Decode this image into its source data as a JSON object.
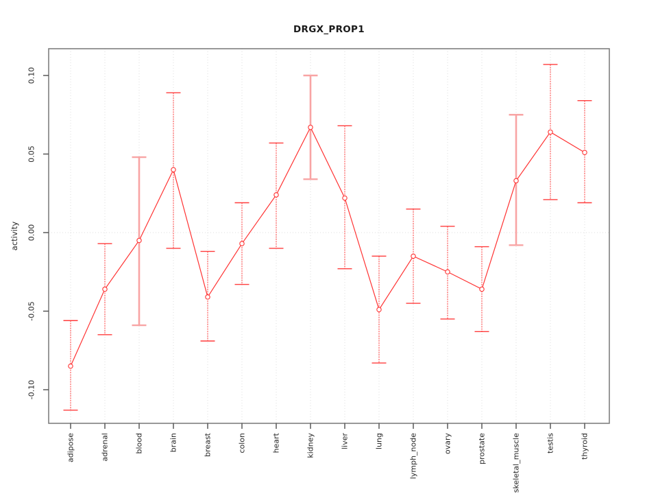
{
  "chart_data": {
    "type": "line",
    "subtype": "point-estimates-with-error-bars",
    "title": "DRGX_PROP1",
    "xlabel": "",
    "ylabel": "activity",
    "ylim": [
      -0.121,
      0.117
    ],
    "grid": {
      "vertical": "dotted-per-category",
      "horizontal": "dotted-at-zero-only"
    },
    "reference_line": 0.0,
    "legend": "none",
    "yticks": [
      {
        "value": 0.1,
        "label": "0.10"
      },
      {
        "value": 0.05,
        "label": "0.05"
      },
      {
        "value": 0.0,
        "label": "0.00"
      },
      {
        "value": -0.05,
        "label": "-0.05"
      },
      {
        "value": -0.1,
        "label": "-0.10"
      }
    ],
    "categories": [
      "adipose",
      "adrenal",
      "blood",
      "brain",
      "breast",
      "colon",
      "heart",
      "kidney",
      "liver",
      "lung",
      "lymph_node",
      "ovary",
      "prostate",
      "skeletal_muscle",
      "testis",
      "thyroid"
    ],
    "series": [
      {
        "name": "activity",
        "points": [
          {
            "label": "adipose",
            "value": -0.085,
            "lower": -0.113,
            "upper": -0.056,
            "bar": "thin"
          },
          {
            "label": "adrenal",
            "value": -0.036,
            "lower": -0.065,
            "upper": -0.007,
            "bar": "thin"
          },
          {
            "label": "blood",
            "value": -0.005,
            "lower": -0.059,
            "upper": 0.048,
            "bar": "thick"
          },
          {
            "label": "brain",
            "value": 0.04,
            "lower": -0.01,
            "upper": 0.089,
            "bar": "thin"
          },
          {
            "label": "breast",
            "value": -0.041,
            "lower": -0.069,
            "upper": -0.012,
            "bar": "thin"
          },
          {
            "label": "colon",
            "value": -0.007,
            "lower": -0.033,
            "upper": 0.019,
            "bar": "thin"
          },
          {
            "label": "heart",
            "value": 0.024,
            "lower": -0.01,
            "upper": 0.057,
            "bar": "thin"
          },
          {
            "label": "kidney",
            "value": 0.067,
            "lower": 0.034,
            "upper": 0.1,
            "bar": "thick"
          },
          {
            "label": "liver",
            "value": 0.022,
            "lower": -0.023,
            "upper": 0.068,
            "bar": "thin"
          },
          {
            "label": "lung",
            "value": -0.049,
            "lower": -0.083,
            "upper": -0.015,
            "bar": "thin"
          },
          {
            "label": "lymph_node",
            "value": -0.015,
            "lower": -0.045,
            "upper": 0.015,
            "bar": "thin"
          },
          {
            "label": "ovary",
            "value": -0.025,
            "lower": -0.055,
            "upper": 0.004,
            "bar": "thin"
          },
          {
            "label": "prostate",
            "value": -0.036,
            "lower": -0.063,
            "upper": -0.009,
            "bar": "thin"
          },
          {
            "label": "skeletal_muscle",
            "value": 0.033,
            "lower": -0.008,
            "upper": 0.075,
            "bar": "thick"
          },
          {
            "label": "testis",
            "value": 0.064,
            "lower": 0.021,
            "upper": 0.107,
            "bar": "thin"
          },
          {
            "label": "thyroid",
            "value": 0.051,
            "lower": 0.019,
            "upper": 0.084,
            "bar": "thin"
          }
        ]
      }
    ],
    "colors": {
      "line": "#ff3232",
      "marker_stroke": "#ff3232",
      "marker_fill": "#ffffff",
      "error_bar_thin": "#ff3b3b",
      "error_bar_thick": "#f8a4a4",
      "grid": "#dcdcdc",
      "box": "#7f7f7f",
      "tick": "#4d4d4d",
      "text": "#262626",
      "background": "#ffffff"
    }
  }
}
